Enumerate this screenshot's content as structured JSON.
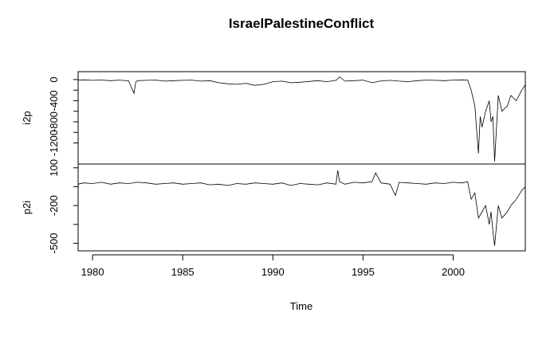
{
  "chart_data": {
    "type": "line",
    "title": "IsraelPalestineConflict",
    "xlabel": "Time",
    "xlim": [
      1979.2,
      2004.0
    ],
    "xticks": [
      1980,
      1985,
      1990,
      1995,
      2000
    ],
    "color": "#000000",
    "panels": [
      {
        "name": "i2p",
        "ylabel": "i2p",
        "ylim": [
          -1600,
          150
        ],
        "yticks": [
          -1200,
          -800,
          -400,
          0
        ],
        "ytick_labels": [
          "-1200",
          "-800",
          "-400",
          "0"
        ],
        "series": {
          "x": [
            1979.2,
            1979.5,
            1980.0,
            1980.5,
            1981.0,
            1981.5,
            1982.0,
            1982.3,
            1982.4,
            1982.5,
            1983.0,
            1983.5,
            1984.0,
            1984.5,
            1985.0,
            1985.5,
            1986.0,
            1986.5,
            1987.0,
            1987.5,
            1988.0,
            1988.5,
            1989.0,
            1989.5,
            1990.0,
            1990.5,
            1991.0,
            1991.5,
            1992.0,
            1992.5,
            1993.0,
            1993.5,
            1993.7,
            1994.0,
            1994.5,
            1995.0,
            1995.5,
            1996.0,
            1996.5,
            1997.0,
            1997.5,
            1998.0,
            1998.5,
            1999.0,
            1999.5,
            2000.0,
            2000.5,
            2000.8,
            2001.0,
            2001.2,
            2001.4,
            2001.5,
            2001.6,
            2001.8,
            2002.0,
            2002.1,
            2002.2,
            2002.3,
            2002.5,
            2002.7,
            2003.0,
            2003.2,
            2003.5,
            2003.8,
            2004.0
          ],
          "y": [
            -10,
            -5,
            -15,
            -8,
            -20,
            -10,
            -25,
            -260,
            -40,
            -20,
            -15,
            -10,
            -30,
            -20,
            -15,
            -10,
            -30,
            -20,
            -60,
            -80,
            -90,
            -70,
            -110,
            -90,
            -40,
            -30,
            -60,
            -50,
            -35,
            -20,
            -40,
            -15,
            50,
            -30,
            -20,
            -10,
            -60,
            -25,
            -15,
            -30,
            -40,
            -20,
            -10,
            -15,
            -20,
            -10,
            -5,
            -10,
            -200,
            -500,
            -1400,
            -700,
            -900,
            -600,
            -400,
            -800,
            -700,
            -1550,
            -300,
            -600,
            -500,
            -300,
            -400,
            -200,
            -100
          ]
        }
      },
      {
        "name": "p2i",
        "ylabel": "p2i",
        "ylim": [
          -560,
          130
        ],
        "yticks": [
          -500,
          -200,
          100
        ],
        "ytick_labels": [
          "-500",
          "-200",
          "100"
        ],
        "series": {
          "x": [
            1979.2,
            1979.5,
            1980.0,
            1980.5,
            1981.0,
            1981.5,
            1982.0,
            1982.5,
            1983.0,
            1983.5,
            1984.0,
            1984.5,
            1985.0,
            1985.5,
            1986.0,
            1986.5,
            1987.0,
            1987.5,
            1988.0,
            1988.5,
            1989.0,
            1989.5,
            1990.0,
            1990.5,
            1991.0,
            1991.5,
            1992.0,
            1992.5,
            1993.0,
            1993.5,
            1993.6,
            1993.7,
            1994.0,
            1994.5,
            1995.0,
            1995.5,
            1995.7,
            1996.0,
            1996.5,
            1996.8,
            1997.0,
            1997.5,
            1998.0,
            1998.5,
            1999.0,
            1999.5,
            2000.0,
            2000.5,
            2000.8,
            2001.0,
            2001.2,
            2001.4,
            2001.6,
            2001.8,
            2002.0,
            2002.1,
            2002.2,
            2002.3,
            2002.5,
            2002.7,
            2003.0,
            2003.2,
            2003.5,
            2003.8,
            2004.0
          ],
          "y": [
            -30,
            -20,
            -25,
            -15,
            -30,
            -20,
            -25,
            -15,
            -20,
            -30,
            -25,
            -20,
            -30,
            -25,
            -20,
            -35,
            -30,
            -40,
            -25,
            -30,
            -20,
            -25,
            -30,
            -20,
            -40,
            -25,
            -30,
            -35,
            -20,
            -30,
            80,
            -10,
            -30,
            -15,
            -20,
            -10,
            60,
            -20,
            -30,
            -120,
            -15,
            -20,
            -25,
            -30,
            -20,
            -25,
            -15,
            -20,
            -10,
            -150,
            -100,
            -300,
            -250,
            -200,
            -350,
            -250,
            -400,
            -520,
            -200,
            -300,
            -250,
            -200,
            -150,
            -80,
            -50
          ]
        }
      }
    ]
  }
}
